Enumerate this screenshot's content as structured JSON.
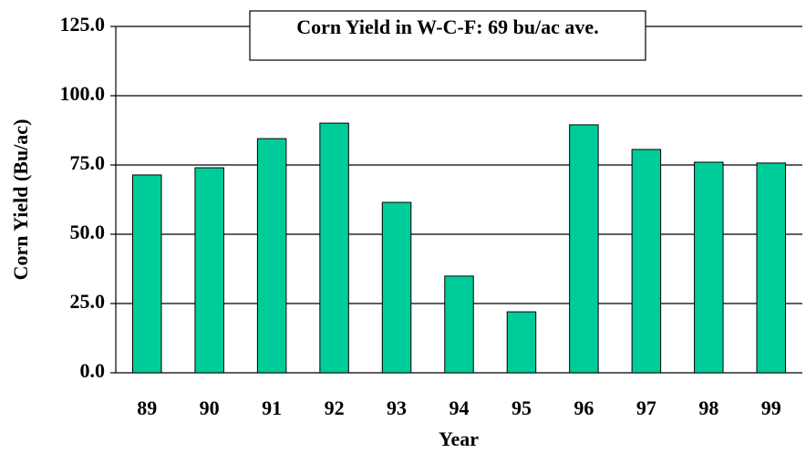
{
  "chart_data": {
    "type": "bar",
    "title": "Corn Yield in W-C-F: 69 bu/ac ave.",
    "x_label": "Year",
    "y_label": "Corn Yield (Bu/ac)",
    "categories": [
      "89",
      "90",
      "91",
      "92",
      "93",
      "94",
      "95",
      "96",
      "97",
      "98",
      "99"
    ],
    "values": [
      71.4,
      74.0,
      84.5,
      90.1,
      61.5,
      34.9,
      22.0,
      89.5,
      80.6,
      76.0,
      75.7
    ],
    "color": "#00cc99",
    "ylim": [
      0,
      125
    ],
    "yticks": [
      {
        "value": 0,
        "label": "0.0"
      },
      {
        "value": 25,
        "label": "25.0"
      },
      {
        "value": 50,
        "label": "50.0"
      },
      {
        "value": 75,
        "label": "75.0"
      },
      {
        "value": 100,
        "label": "100.0"
      },
      {
        "value": 125,
        "label": "125.0"
      }
    ],
    "grid": true
  }
}
